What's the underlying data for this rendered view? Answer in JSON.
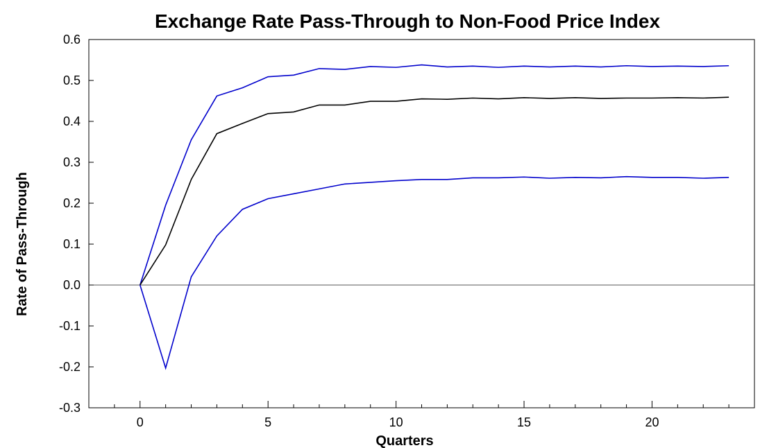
{
  "chart_data": {
    "type": "line",
    "title": "Exchange Rate Pass-Through to Non-Food Price Index",
    "xlabel": "Quarters",
    "ylabel": "Rate of Pass-Through",
    "xlim": [
      -2,
      24
    ],
    "ylim": [
      -0.3,
      0.6
    ],
    "x_ticks": [
      0,
      5,
      10,
      15,
      20
    ],
    "x_tick_labels": [
      "0",
      "5",
      "10",
      "15",
      "20"
    ],
    "y_ticks": [
      -0.3,
      -0.2,
      -0.1,
      0.0,
      0.1,
      0.2,
      0.3,
      0.4,
      0.5,
      0.6
    ],
    "y_tick_labels": [
      "-0.3",
      "-0.2",
      "-0.1",
      "0.0",
      "0.1",
      "0.2",
      "0.3",
      "0.4",
      "0.5",
      "0.6"
    ],
    "zero_line": true,
    "grid": false,
    "x": [
      0,
      1,
      2,
      3,
      4,
      5,
      6,
      7,
      8,
      9,
      10,
      11,
      12,
      13,
      14,
      15,
      16,
      17,
      18,
      19,
      20,
      21,
      22,
      23
    ],
    "series": [
      {
        "color": "#0000cc",
        "values": [
          0.0,
          0.195,
          0.355,
          0.462,
          0.482,
          0.509,
          0.513,
          0.529,
          0.527,
          0.534,
          0.532,
          0.538,
          0.533,
          0.535,
          0.532,
          0.535,
          0.533,
          0.535,
          0.533,
          0.536,
          0.534,
          0.535,
          0.534,
          0.536
        ]
      },
      {
        "color": "#000000",
        "values": [
          0.0,
          0.098,
          0.258,
          0.37,
          0.395,
          0.419,
          0.423,
          0.44,
          0.44,
          0.449,
          0.449,
          0.455,
          0.454,
          0.457,
          0.455,
          0.458,
          0.456,
          0.458,
          0.456,
          0.457,
          0.457,
          0.458,
          0.457,
          0.459
        ]
      },
      {
        "color": "#0000cc",
        "values": [
          0.0,
          -0.203,
          0.02,
          0.12,
          0.185,
          0.211,
          0.223,
          0.235,
          0.247,
          0.251,
          0.255,
          0.258,
          0.258,
          0.262,
          0.262,
          0.264,
          0.261,
          0.263,
          0.262,
          0.265,
          0.263,
          0.263,
          0.261,
          0.263
        ]
      }
    ]
  }
}
